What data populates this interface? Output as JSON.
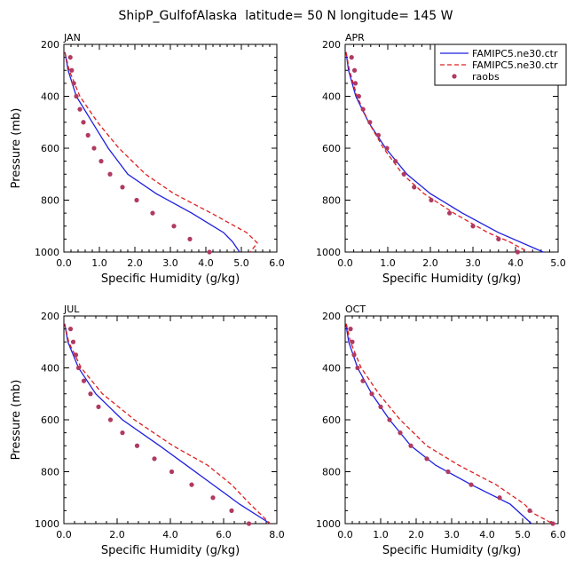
{
  "figure_title": "ShipP_GulfofAlaska  latitude= 50 N longitude= 145 W",
  "colors": {
    "model_a": "#1f1fe0",
    "model_b": "#e01f1f",
    "raobs": "#b03a60"
  },
  "legend": [
    {
      "label": "FAMIPC5.ne30.ctr",
      "style": "solid",
      "color": "#1f1fe0"
    },
    {
      "label": "FAMIPC5.ne30.ctr",
      "style": "dashed",
      "color": "#e01f1f"
    },
    {
      "label": "raobs",
      "style": "dots",
      "color": "#b03a60"
    }
  ],
  "chart_data": [
    {
      "type": "line",
      "panel": "JAN",
      "xlabel": "Specific Humidity (g/kg)",
      "ylabel": "Pressure (mb)",
      "xlim": [
        0,
        6
      ],
      "xticks": [
        "0.0",
        "1.0",
        "2.0",
        "3.0",
        "4.0",
        "5.0",
        "6.0"
      ],
      "ylim": [
        200,
        1000
      ],
      "yticks": [
        "200",
        "400",
        "600",
        "800",
        "1000"
      ],
      "series": [
        {
          "pressure": [
            230,
            300,
            400,
            500,
            600,
            700,
            775,
            850,
            925,
            960,
            1000
          ],
          "humidity": [
            0.03,
            0.12,
            0.35,
            0.8,
            1.25,
            1.8,
            2.6,
            3.6,
            4.5,
            4.75,
            4.95
          ]
        },
        {
          "pressure": [
            230,
            300,
            400,
            500,
            600,
            700,
            775,
            850,
            925,
            965,
            1000
          ],
          "humidity": [
            0.03,
            0.15,
            0.45,
            0.95,
            1.55,
            2.3,
            3.1,
            4.15,
            5.15,
            5.45,
            5.25
          ]
        },
        {
          "pressure": [
            250,
            300,
            350,
            400,
            450,
            500,
            550,
            600,
            650,
            700,
            750,
            800,
            850,
            900,
            950,
            1000
          ],
          "humidity": [
            0.18,
            0.22,
            0.28,
            0.35,
            0.45,
            0.55,
            0.68,
            0.85,
            1.05,
            1.3,
            1.65,
            2.05,
            2.5,
            3.1,
            3.55,
            4.1
          ]
        }
      ]
    },
    {
      "type": "line",
      "panel": "APR",
      "xlabel": "Specific Humidity (g/kg)",
      "ylabel": "",
      "xlim": [
        0,
        5
      ],
      "xticks": [
        "0.0",
        "1.0",
        "2.0",
        "3.0",
        "4.0",
        "5.0"
      ],
      "ylim": [
        200,
        1000
      ],
      "yticks": [
        "200",
        "400",
        "600",
        "800",
        "1000"
      ],
      "series": [
        {
          "pressure": [
            230,
            300,
            400,
            500,
            600,
            700,
            775,
            850,
            925,
            1000
          ],
          "humidity": [
            0.02,
            0.08,
            0.25,
            0.55,
            0.95,
            1.45,
            2.0,
            2.75,
            3.6,
            4.65
          ]
        },
        {
          "pressure": [
            230,
            300,
            400,
            500,
            600,
            700,
            775,
            850,
            925,
            960,
            1000
          ],
          "humidity": [
            0.02,
            0.1,
            0.28,
            0.55,
            0.9,
            1.35,
            1.85,
            2.55,
            3.35,
            3.85,
            4.3
          ]
        },
        {
          "pressure": [
            250,
            300,
            350,
            400,
            450,
            500,
            550,
            600,
            650,
            700,
            750,
            800,
            850,
            900,
            950,
            1000
          ],
          "humidity": [
            0.15,
            0.22,
            0.24,
            0.32,
            0.42,
            0.58,
            0.78,
            0.98,
            1.18,
            1.38,
            1.62,
            2.02,
            2.45,
            3.0,
            3.6,
            4.05
          ]
        }
      ]
    },
    {
      "type": "line",
      "panel": "JUL",
      "xlabel": "Specific Humidity (g/kg)",
      "ylabel": "Pressure (mb)",
      "xlim": [
        0,
        8
      ],
      "xticks": [
        "0.0",
        "2.0",
        "4.0",
        "6.0",
        "8.0"
      ],
      "ylim": [
        200,
        1000
      ],
      "yticks": [
        "200",
        "400",
        "600",
        "800",
        "1000"
      ],
      "series": [
        {
          "pressure": [
            230,
            300,
            400,
            500,
            600,
            700,
            775,
            850,
            925,
            1000
          ],
          "humidity": [
            0.03,
            0.15,
            0.55,
            1.2,
            2.2,
            3.6,
            4.6,
            5.6,
            6.6,
            7.75
          ]
        },
        {
          "pressure": [
            230,
            300,
            400,
            500,
            600,
            700,
            775,
            850,
            925,
            1000
          ],
          "humidity": [
            0.03,
            0.18,
            0.65,
            1.45,
            2.65,
            4.1,
            5.4,
            6.3,
            7.0,
            7.75
          ]
        },
        {
          "pressure": [
            250,
            300,
            350,
            400,
            450,
            500,
            550,
            600,
            650,
            700,
            750,
            800,
            850,
            900,
            950,
            1000
          ],
          "humidity": [
            0.25,
            0.35,
            0.45,
            0.55,
            0.75,
            1.0,
            1.3,
            1.75,
            2.2,
            2.75,
            3.4,
            4.05,
            4.8,
            5.6,
            6.3,
            6.95
          ]
        }
      ]
    },
    {
      "type": "line",
      "panel": "OCT",
      "xlabel": "Specific Humidity (g/kg)",
      "ylabel": "",
      "xlim": [
        0,
        6
      ],
      "xticks": [
        "0.0",
        "1.0",
        "2.0",
        "3.0",
        "4.0",
        "5.0",
        "6.0"
      ],
      "ylim": [
        200,
        1000
      ],
      "yticks": [
        "200",
        "400",
        "600",
        "800",
        "1000"
      ],
      "series": [
        {
          "pressure": [
            230,
            300,
            400,
            500,
            600,
            700,
            775,
            850,
            925,
            1000
          ],
          "humidity": [
            0.02,
            0.1,
            0.35,
            0.75,
            1.25,
            1.85,
            2.55,
            3.55,
            4.65,
            5.25
          ]
        },
        {
          "pressure": [
            230,
            300,
            400,
            500,
            600,
            700,
            775,
            850,
            925,
            960,
            1000
          ],
          "humidity": [
            0.03,
            0.15,
            0.45,
            0.95,
            1.55,
            2.3,
            3.2,
            4.25,
            5.05,
            5.3,
            5.85
          ]
        },
        {
          "pressure": [
            250,
            300,
            350,
            400,
            450,
            500,
            550,
            600,
            650,
            700,
            750,
            800,
            850,
            900,
            950,
            1000
          ],
          "humidity": [
            0.15,
            0.2,
            0.25,
            0.35,
            0.5,
            0.75,
            1.0,
            1.25,
            1.55,
            1.85,
            2.3,
            2.9,
            3.55,
            4.35,
            5.2,
            5.85
          ]
        }
      ]
    }
  ]
}
